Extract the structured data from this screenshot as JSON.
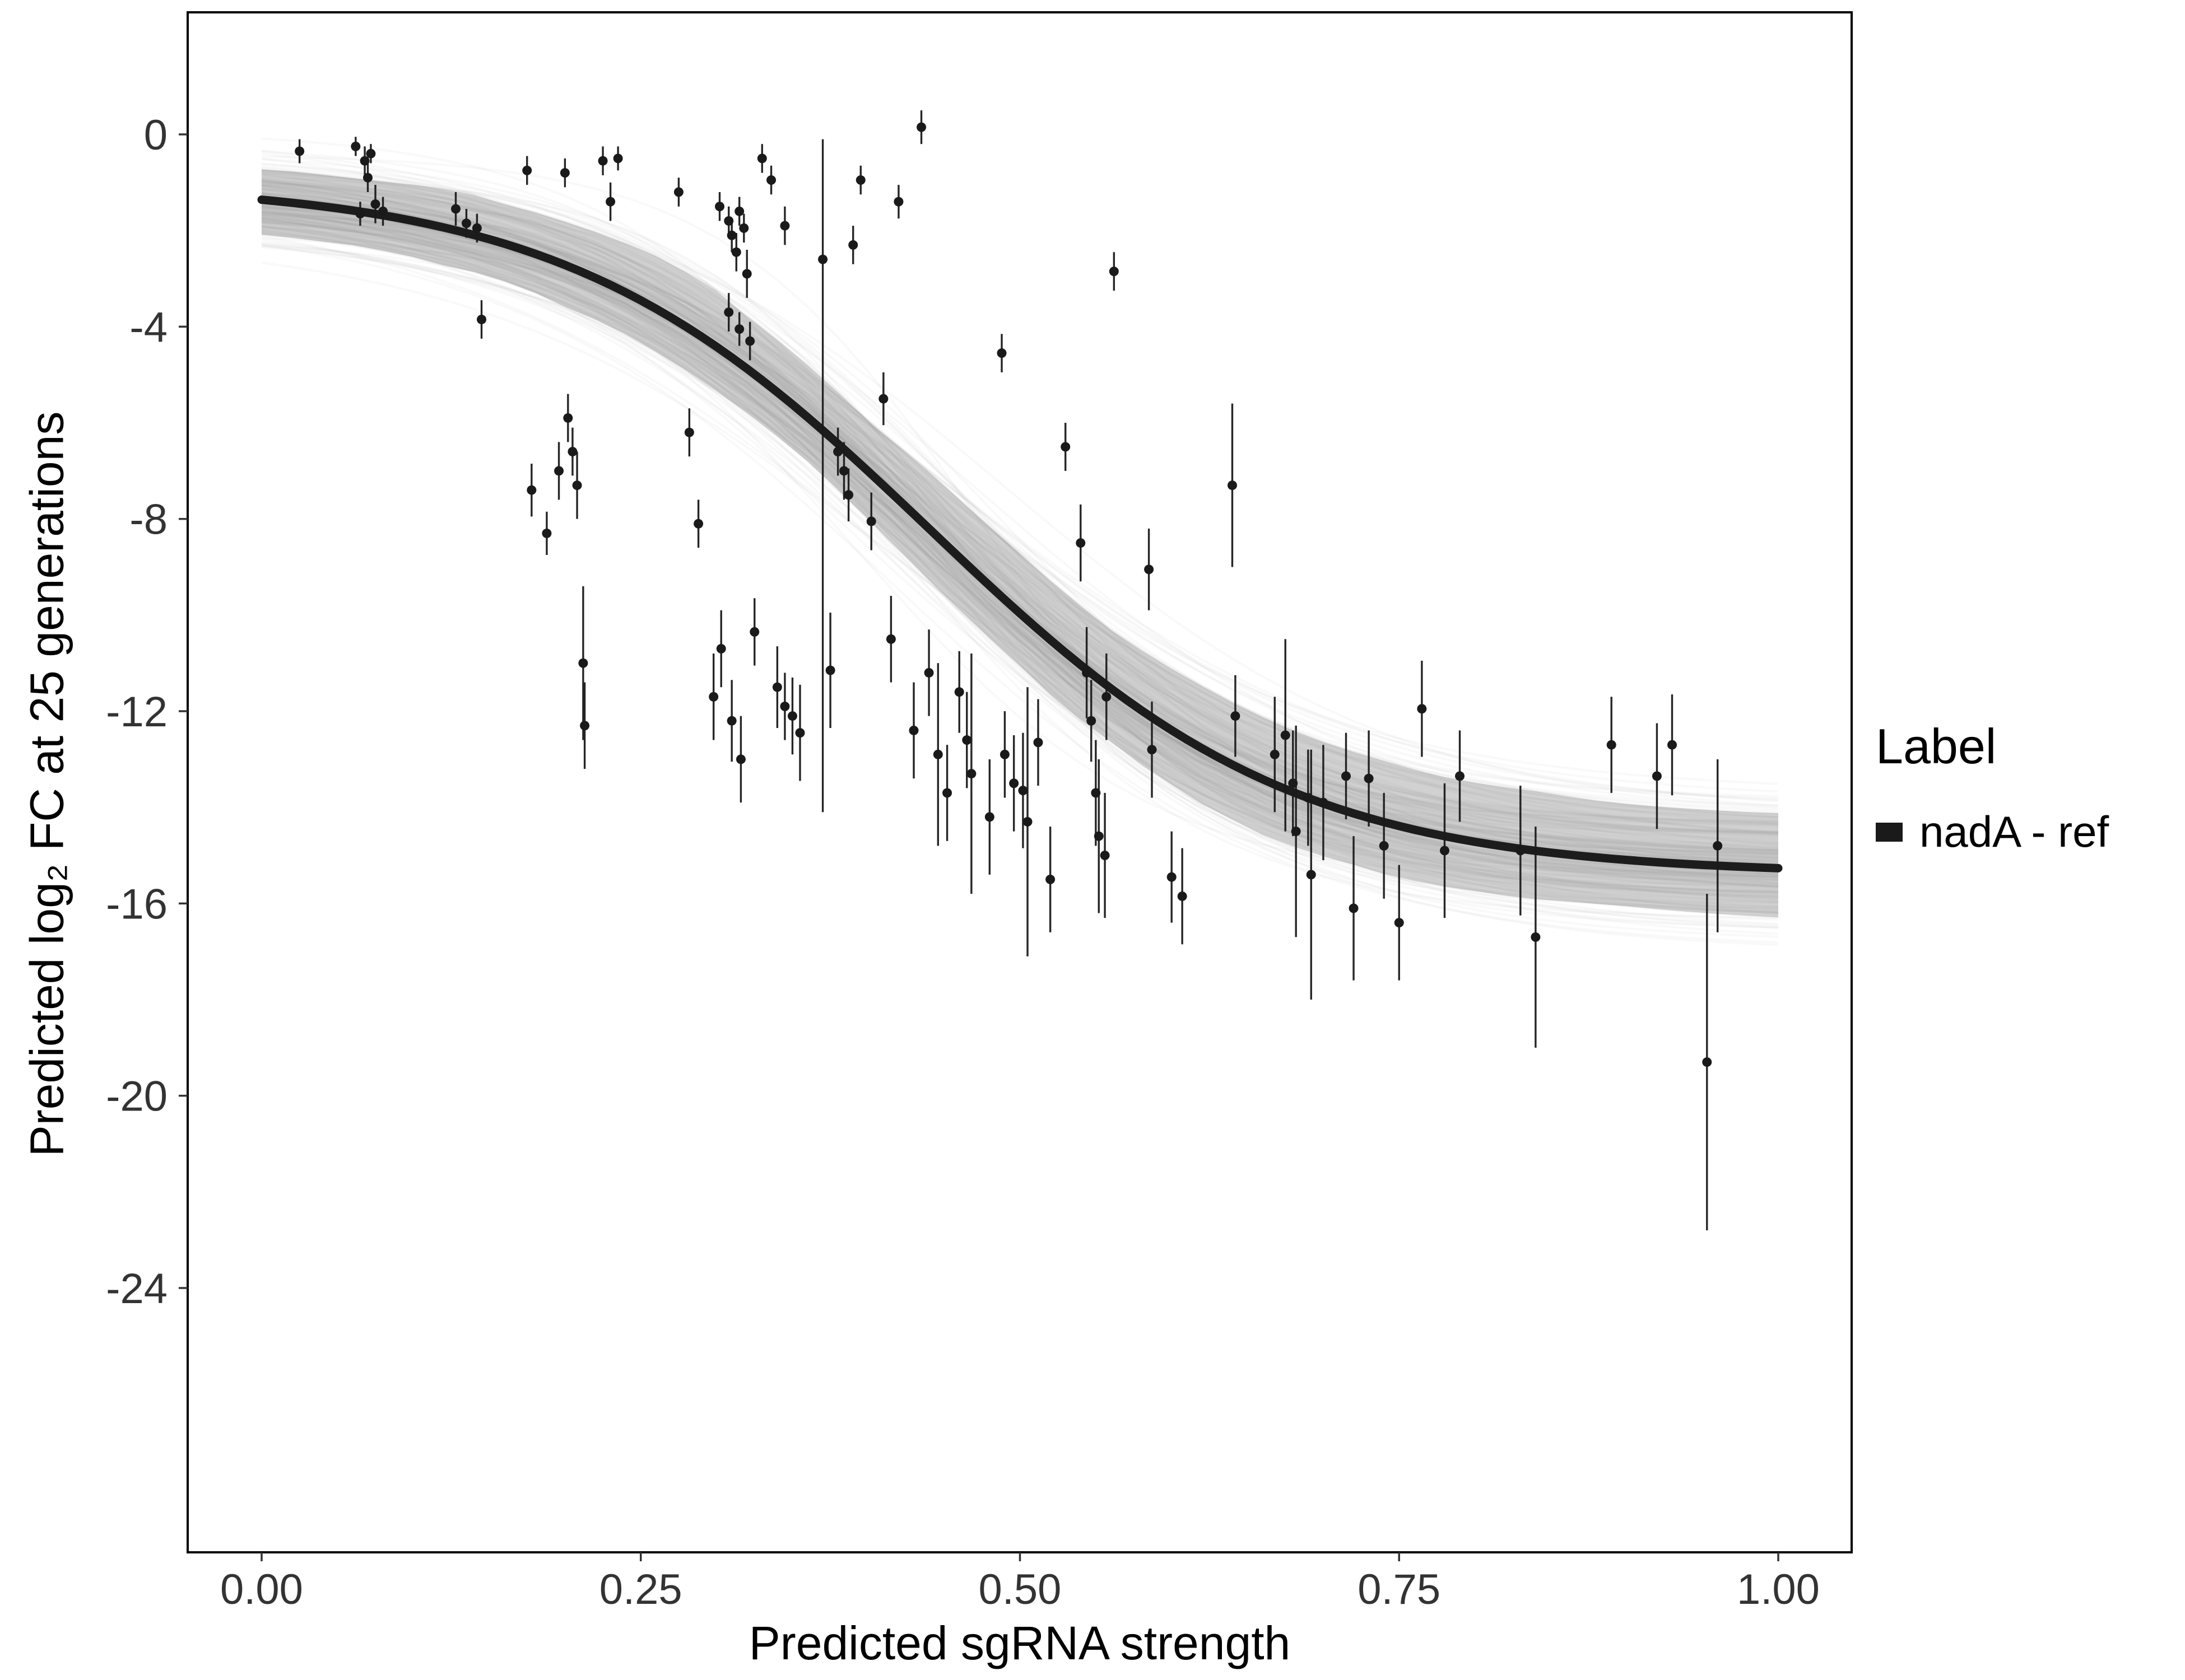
{
  "chart_data": {
    "type": "scatter",
    "title": "",
    "xlabel": "Predicted sgRNA strength",
    "ylabel": "Predicted  log₂ FC at 25 generations",
    "xlim": [
      -0.04,
      1.04
    ],
    "ylim": [
      -29.5,
      2.5
    ],
    "grid": false,
    "x_ticks": {
      "values": [
        0,
        0.25,
        0.5,
        0.75,
        1.0
      ],
      "labels": [
        "0.00",
        "0.25",
        "0.50",
        "0.75",
        "1.00"
      ]
    },
    "y_ticks": {
      "values": [
        0,
        -4,
        -8,
        -12,
        -16,
        -20,
        -24
      ],
      "labels": [
        "0",
        "-4",
        "-8",
        "-12",
        "-16",
        "-20",
        "-24"
      ]
    },
    "legend": {
      "title": "Label",
      "position": "right",
      "items": [
        {
          "label": "nadA - ref",
          "color": "#1a1a1a"
        }
      ]
    },
    "fit_curve": {
      "model": "logistic",
      "top": -1.0,
      "bottom": -15.4,
      "midpoint": 0.44,
      "scale": 0.12,
      "uncertainty_draws": 170
    },
    "colors": {
      "point": "#1a1a1a",
      "curve": "#1c1c1c",
      "band": "#8f8f8f",
      "band_fill": "#c6c6c6",
      "axis_text": "#333333",
      "panel_border": "#000000"
    },
    "points": [
      [
        0.025,
        -0.35,
        0.25
      ],
      [
        0.062,
        -0.25,
        0.2
      ],
      [
        0.068,
        -0.55,
        0.3
      ],
      [
        0.07,
        -0.9,
        0.3
      ],
      [
        0.075,
        -1.45,
        0.4
      ],
      [
        0.08,
        -1.6,
        0.3
      ],
      [
        0.065,
        -1.65,
        0.25
      ],
      [
        0.072,
        -0.4,
        0.2
      ],
      [
        0.128,
        -1.55,
        0.35
      ],
      [
        0.135,
        -1.85,
        0.3
      ],
      [
        0.142,
        -1.95,
        0.3
      ],
      [
        0.145,
        -3.85,
        0.4
      ],
      [
        0.175,
        -0.75,
        0.3
      ],
      [
        0.178,
        -7.4,
        0.55
      ],
      [
        0.188,
        -8.3,
        0.45
      ],
      [
        0.196,
        -7.0,
        0.6
      ],
      [
        0.2,
        -0.8,
        0.3
      ],
      [
        0.202,
        -5.9,
        0.5
      ],
      [
        0.208,
        -7.3,
        0.7
      ],
      [
        0.205,
        -6.6,
        0.5
      ],
      [
        0.212,
        -11.0,
        1.6
      ],
      [
        0.213,
        -12.3,
        0.9
      ],
      [
        0.225,
        -0.55,
        0.3
      ],
      [
        0.235,
        -0.5,
        0.25
      ],
      [
        0.23,
        -1.4,
        0.4
      ],
      [
        0.275,
        -1.2,
        0.3
      ],
      [
        0.282,
        -6.2,
        0.5
      ],
      [
        0.288,
        -8.1,
        0.5
      ],
      [
        0.298,
        -11.7,
        0.9
      ],
      [
        0.303,
        -10.7,
        0.8
      ],
      [
        0.302,
        -1.5,
        0.3
      ],
      [
        0.308,
        -1.8,
        0.3
      ],
      [
        0.31,
        -2.1,
        0.35
      ],
      [
        0.315,
        -1.6,
        0.3
      ],
      [
        0.313,
        -2.45,
        0.4
      ],
      [
        0.318,
        -1.95,
        0.3
      ],
      [
        0.32,
        -2.9,
        0.5
      ],
      [
        0.308,
        -3.7,
        0.4
      ],
      [
        0.315,
        -4.05,
        0.35
      ],
      [
        0.322,
        -4.3,
        0.4
      ],
      [
        0.31,
        -12.2,
        0.85
      ],
      [
        0.316,
        -13.0,
        0.9
      ],
      [
        0.325,
        -10.35,
        0.7
      ],
      [
        0.33,
        -0.5,
        0.3
      ],
      [
        0.336,
        -0.95,
        0.3
      ],
      [
        0.34,
        -11.5,
        0.85
      ],
      [
        0.345,
        -11.9,
        0.7
      ],
      [
        0.345,
        -1.9,
        0.4
      ],
      [
        0.35,
        -12.1,
        0.8
      ],
      [
        0.355,
        -12.45,
        1.0
      ],
      [
        0.37,
        -2.6,
        11.5,
        2.5
      ],
      [
        0.375,
        -11.15,
        1.2
      ],
      [
        0.38,
        -6.6,
        0.5
      ],
      [
        0.384,
        -7.0,
        0.6
      ],
      [
        0.387,
        -7.5,
        0.55
      ],
      [
        0.39,
        -2.3,
        0.4
      ],
      [
        0.395,
        -0.95,
        0.3
      ],
      [
        0.402,
        -8.05,
        0.6
      ],
      [
        0.41,
        -5.5,
        0.55
      ],
      [
        0.415,
        -10.5,
        0.9
      ],
      [
        0.42,
        -1.4,
        0.35
      ],
      [
        0.435,
        0.15,
        0.35
      ],
      [
        0.43,
        -12.4,
        1.0
      ],
      [
        0.44,
        -11.2,
        0.9
      ],
      [
        0.446,
        -12.9,
        1.9
      ],
      [
        0.452,
        -13.7,
        1.0
      ],
      [
        0.46,
        -11.6,
        0.85
      ],
      [
        0.465,
        -12.6,
        1.0
      ],
      [
        0.468,
        -13.3,
        2.5
      ],
      [
        0.48,
        -14.2,
        1.2
      ],
      [
        0.488,
        -4.55,
        0.4
      ],
      [
        0.49,
        -12.9,
        0.9
      ],
      [
        0.496,
        -13.5,
        1.0
      ],
      [
        0.502,
        -13.65,
        1.2
      ],
      [
        0.505,
        -14.3,
        2.8
      ],
      [
        0.512,
        -12.65,
        0.9
      ],
      [
        0.52,
        -15.5,
        1.1
      ],
      [
        0.53,
        -6.5,
        0.5
      ],
      [
        0.54,
        -8.5,
        0.8
      ],
      [
        0.544,
        -11.2,
        0.95
      ],
      [
        0.547,
        -12.2,
        0.85
      ],
      [
        0.55,
        -13.7,
        1.1
      ],
      [
        0.552,
        -14.6,
        1.6
      ],
      [
        0.556,
        -15.0,
        1.3
      ],
      [
        0.557,
        -11.7,
        0.9
      ],
      [
        0.562,
        -2.85,
        0.4
      ],
      [
        0.585,
        -9.05,
        0.85
      ],
      [
        0.587,
        -12.8,
        1.0
      ],
      [
        0.6,
        -15.45,
        0.95
      ],
      [
        0.607,
        -15.85,
        1.0
      ],
      [
        0.64,
        -7.3,
        1.7
      ],
      [
        0.642,
        -12.1,
        0.85
      ],
      [
        0.668,
        -12.9,
        1.2
      ],
      [
        0.675,
        -12.5,
        2.0
      ],
      [
        0.68,
        -13.5,
        1.1
      ],
      [
        0.682,
        -14.5,
        2.2
      ],
      [
        0.69,
        -13.8,
        1.0
      ],
      [
        0.692,
        -15.4,
        2.6
      ],
      [
        0.7,
        -13.9,
        1.2
      ],
      [
        0.715,
        -13.35,
        0.9
      ],
      [
        0.72,
        -16.1,
        1.5
      ],
      [
        0.73,
        -13.4,
        1.0
      ],
      [
        0.74,
        -14.8,
        1.1
      ],
      [
        0.75,
        -16.4,
        1.2
      ],
      [
        0.765,
        -11.95,
        1.0
      ],
      [
        0.78,
        -14.9,
        1.4
      ],
      [
        0.79,
        -13.35,
        0.95
      ],
      [
        0.83,
        -14.9,
        1.35
      ],
      [
        0.84,
        -16.7,
        2.3
      ],
      [
        0.89,
        -12.7,
        1.0
      ],
      [
        0.92,
        -13.35,
        1.1
      ],
      [
        0.93,
        -12.7,
        1.05
      ],
      [
        0.953,
        -19.3,
        3.5
      ],
      [
        0.96,
        -14.8,
        1.8
      ]
    ]
  }
}
